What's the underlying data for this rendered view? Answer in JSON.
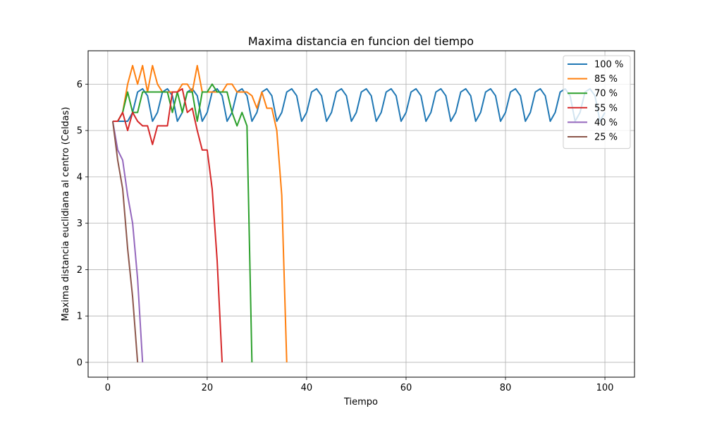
{
  "chart_data": {
    "type": "line",
    "title": "Maxima distancia en funcion del tiempo",
    "xlabel": "Tiempo",
    "ylabel": "Maxima distancia euclidiana al centro (Celdas)",
    "xlim": [
      -3.95,
      105.95
    ],
    "ylim": [
      -0.32,
      6.72
    ],
    "xticks": [
      0,
      20,
      40,
      60,
      80,
      100
    ],
    "yticks": [
      0,
      1,
      2,
      3,
      4,
      5,
      6
    ],
    "grid": true,
    "legend_position": "top-right",
    "series": [
      {
        "name": "100 %",
        "color": "#1f77b4",
        "x": [
          1,
          2,
          3,
          4,
          5,
          6,
          7,
          8,
          9,
          10,
          11,
          12,
          13,
          14,
          15,
          16,
          17,
          18,
          19,
          20,
          21,
          22,
          23,
          24,
          25,
          26,
          27,
          28,
          29,
          30,
          31,
          32,
          33,
          34,
          35,
          36,
          37,
          38,
          39,
          40,
          41,
          42,
          43,
          44,
          45,
          46,
          47,
          48,
          49,
          50,
          51,
          52,
          53,
          54,
          55,
          56,
          57,
          58,
          59,
          60,
          61,
          62,
          63,
          64,
          65,
          66,
          67,
          68,
          69,
          70,
          71,
          72,
          73,
          74,
          75,
          76,
          77,
          78,
          79,
          80,
          81,
          82,
          83,
          84,
          85,
          86,
          87,
          88,
          89,
          90,
          91,
          92,
          93,
          94,
          95,
          96,
          97,
          98,
          99,
          100
        ],
        "y": [
          5.2,
          5.2,
          5.2,
          5.2,
          5.39,
          5.83,
          5.9,
          5.75,
          5.2,
          5.39,
          5.83,
          5.9,
          5.75,
          5.2,
          5.39,
          5.83,
          5.9,
          5.75,
          5.2,
          5.39,
          5.83,
          5.9,
          5.75,
          5.2,
          5.39,
          5.83,
          5.9,
          5.75,
          5.2,
          5.39,
          5.83,
          5.9,
          5.75,
          5.2,
          5.39,
          5.83,
          5.9,
          5.75,
          5.2,
          5.39,
          5.83,
          5.9,
          5.75,
          5.2,
          5.39,
          5.83,
          5.9,
          5.75,
          5.2,
          5.39,
          5.83,
          5.9,
          5.75,
          5.2,
          5.39,
          5.83,
          5.9,
          5.75,
          5.2,
          5.39,
          5.83,
          5.9,
          5.75,
          5.2,
          5.39,
          5.83,
          5.9,
          5.75,
          5.2,
          5.39,
          5.83,
          5.9,
          5.75,
          5.2,
          5.39,
          5.83,
          5.9,
          5.75,
          5.2,
          5.39,
          5.83,
          5.9,
          5.75,
          5.2,
          5.39,
          5.83,
          5.9,
          5.75,
          5.2,
          5.39,
          5.83,
          5.9,
          5.75,
          5.2,
          5.39,
          5.83,
          5.9,
          5.75,
          5.2,
          5.39
        ]
      },
      {
        "name": "85 %",
        "color": "#ff7f0e",
        "x": [
          1,
          2,
          3,
          4,
          5,
          6,
          7,
          8,
          9,
          10,
          11,
          12,
          13,
          14,
          15,
          16,
          17,
          18,
          19,
          20,
          21,
          22,
          23,
          24,
          25,
          26,
          27,
          28,
          29,
          30,
          31,
          32,
          33,
          34,
          35,
          36
        ],
        "y": [
          5.2,
          5.2,
          5.39,
          6.0,
          6.4,
          6.0,
          6.4,
          5.83,
          6.4,
          6.0,
          5.83,
          5.83,
          5.83,
          5.83,
          6.0,
          6.0,
          5.83,
          6.4,
          5.83,
          5.83,
          5.83,
          5.83,
          5.83,
          6.0,
          6.0,
          5.83,
          5.83,
          5.83,
          5.75,
          5.48,
          5.83,
          5.48,
          5.48,
          5.0,
          3.6,
          0.0
        ]
      },
      {
        "name": "70 %",
        "color": "#2ca02c",
        "x": [
          1,
          2,
          3,
          4,
          5,
          6,
          7,
          8,
          9,
          10,
          11,
          12,
          13,
          14,
          15,
          16,
          17,
          18,
          19,
          20,
          21,
          22,
          23,
          24,
          25,
          26,
          27,
          28,
          29
        ],
        "y": [
          5.2,
          5.2,
          5.39,
          5.83,
          5.39,
          5.39,
          5.83,
          5.83,
          5.83,
          5.83,
          5.83,
          5.83,
          5.39,
          5.83,
          5.39,
          5.83,
          5.83,
          5.2,
          5.83,
          5.83,
          6.0,
          5.83,
          5.83,
          5.83,
          5.39,
          5.1,
          5.39,
          5.1,
          0.0
        ]
      },
      {
        "name": "55 %",
        "color": "#d62728",
        "x": [
          1,
          2,
          3,
          4,
          5,
          6,
          7,
          8,
          9,
          10,
          11,
          12,
          13,
          14,
          15,
          16,
          17,
          18,
          19,
          20,
          21,
          22,
          23
        ],
        "y": [
          5.2,
          5.2,
          5.39,
          5.0,
          5.39,
          5.2,
          5.1,
          5.1,
          4.7,
          5.1,
          5.1,
          5.1,
          5.83,
          5.83,
          5.9,
          5.39,
          5.48,
          5.0,
          4.58,
          4.58,
          3.74,
          2.2,
          0.0
        ]
      },
      {
        "name": "40 %",
        "color": "#9467bd",
        "x": [
          1,
          2,
          3,
          4,
          5,
          6,
          7
        ],
        "y": [
          5.2,
          4.58,
          4.36,
          3.6,
          3.0,
          1.8,
          0.0
        ]
      },
      {
        "name": "25 %",
        "color": "#8c564b",
        "x": [
          1,
          2,
          3,
          4,
          5,
          6
        ],
        "y": [
          5.2,
          4.36,
          3.74,
          2.45,
          1.41,
          0.0
        ]
      }
    ]
  }
}
